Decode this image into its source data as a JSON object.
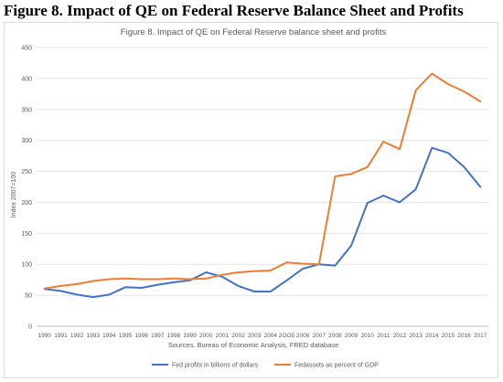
{
  "heading": "Figure 8. Impact of QE on Federal Reserve Balance Sheet and Profits",
  "chart_data": {
    "type": "line",
    "title": "Figure 8. Impact of QE on Federal Reserve balance sheet and profits",
    "subtitle": "Sources. Bureau of Economic Analysis, FRED database",
    "ylabel": "Index 2007=100",
    "xlabel": "",
    "ylim": [
      0,
      450
    ],
    "yticks": [
      "0",
      "50",
      "100",
      "150",
      "200",
      "250",
      "300",
      "350",
      "400",
      "450"
    ],
    "categories": [
      "1990",
      "1991",
      "1992",
      "1993",
      "1994",
      "1995",
      "1996",
      "1997",
      "1998",
      "1999",
      "2000",
      "2001",
      "2002",
      "2003",
      "2004",
      "2OO5",
      "2006",
      "2007",
      "2008",
      "2009",
      "2010",
      "2011",
      "2012",
      "2013",
      "2014",
      "2015",
      "2016",
      "2017"
    ],
    "grid": true,
    "legend_position": "bottom",
    "series": [
      {
        "name": "Fed profits in billions of dollars",
        "color": "#4472c4",
        "values": [
          60,
          57,
          51,
          47,
          51,
          63,
          62,
          67,
          71,
          74,
          87,
          80,
          65,
          56,
          56,
          74,
          93,
          100,
          98,
          130,
          199,
          211,
          200,
          221,
          288,
          280,
          257,
          225
        ]
      },
      {
        "name": "Fedassets as percent of GDP",
        "color": "#ed7d31",
        "values": [
          61,
          65,
          68,
          73,
          76,
          77,
          76,
          76,
          77,
          76,
          77,
          83,
          87,
          89,
          90,
          103,
          101,
          100,
          242,
          246,
          257,
          298,
          286,
          381,
          408,
          391,
          379,
          363
        ]
      }
    ]
  }
}
